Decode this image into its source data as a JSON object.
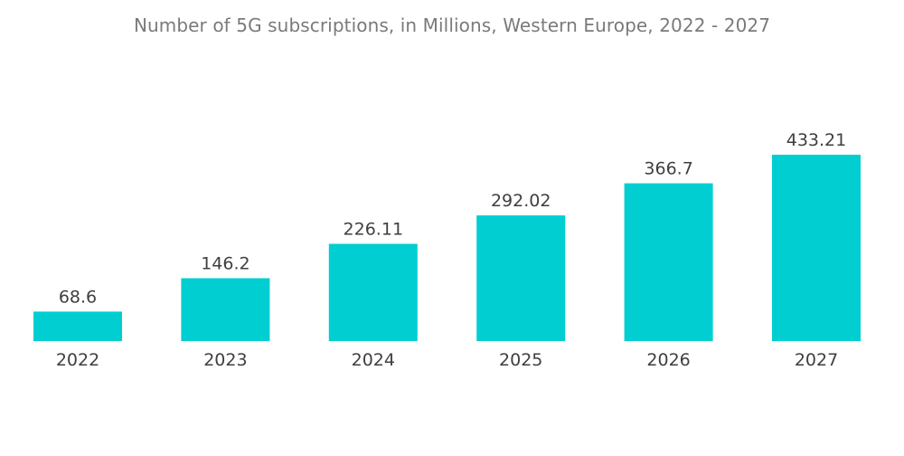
{
  "chart_data": {
    "type": "bar",
    "title": "Number of 5G subscriptions, in Millions, Western Europe, 2022 - 2027",
    "xlabel": "",
    "ylabel": "",
    "categories": [
      "2022",
      "2023",
      "2024",
      "2025",
      "2026",
      "2027"
    ],
    "values": [
      68.6,
      146.2,
      226.11,
      292.02,
      366.7,
      433.21
    ],
    "value_labels": [
      "68.6",
      "146.2",
      "226.11",
      "292.02",
      "366.7",
      "433.21"
    ],
    "ylim": [
      0,
      433.21
    ],
    "grid": false,
    "legend": "none",
    "bar_color": "#00ced1"
  }
}
